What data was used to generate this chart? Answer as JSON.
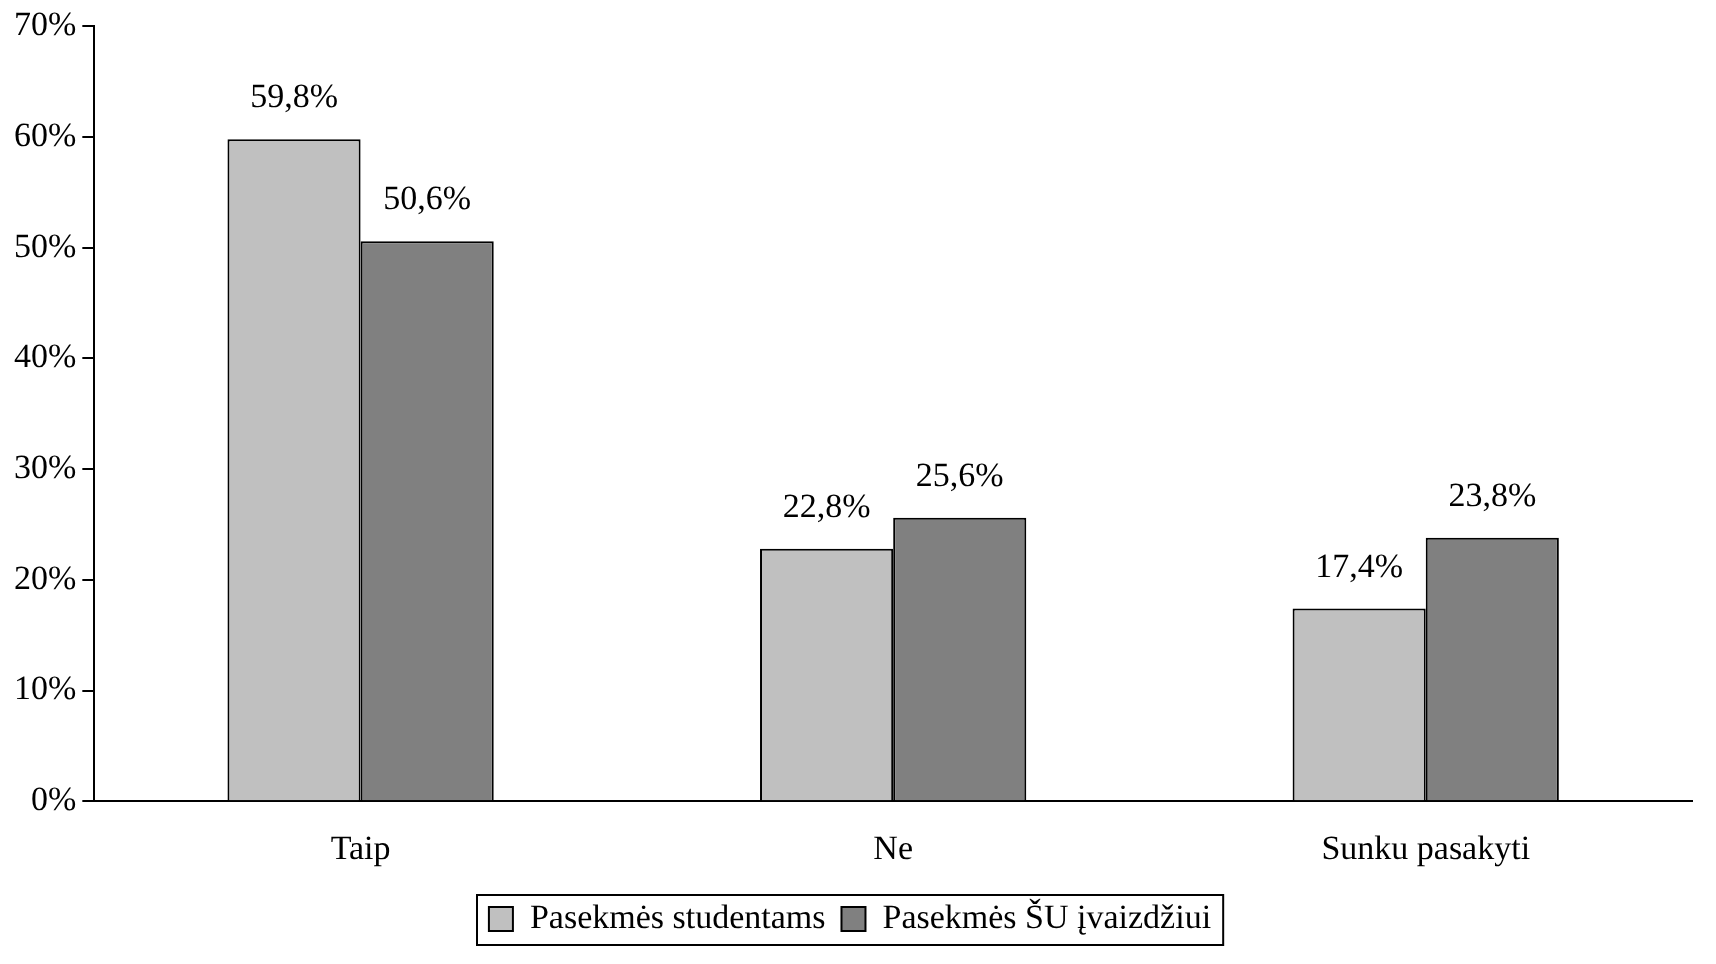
{
  "chart_data": {
    "type": "bar",
    "categories": [
      "Taip",
      "Ne",
      "Sunku pasakyti"
    ],
    "series": [
      {
        "name": "Pasekmės studentams",
        "color": "#c0c0c0",
        "values": [
          59.8,
          22.8,
          17.4
        ],
        "value_labels": [
          "59,8%",
          "22,8%",
          "17,4%"
        ]
      },
      {
        "name": "Pasekmės ŠU įvaizdžiui",
        "color": "#808080",
        "values": [
          50.6,
          25.6,
          23.8
        ],
        "value_labels": [
          "50,6%",
          "25,6%",
          "23,8%"
        ]
      }
    ],
    "ylim": [
      0,
      70
    ],
    "yticks": [
      {
        "value": 0,
        "label": "0%"
      },
      {
        "value": 10,
        "label": "10%"
      },
      {
        "value": 20,
        "label": "20%"
      },
      {
        "value": 30,
        "label": "30%"
      },
      {
        "value": 40,
        "label": "40%"
      },
      {
        "value": 50,
        "label": "50%"
      },
      {
        "value": 60,
        "label": "60%"
      },
      {
        "value": 70,
        "label": "70%"
      }
    ],
    "grid": false,
    "legend": "bottom"
  }
}
